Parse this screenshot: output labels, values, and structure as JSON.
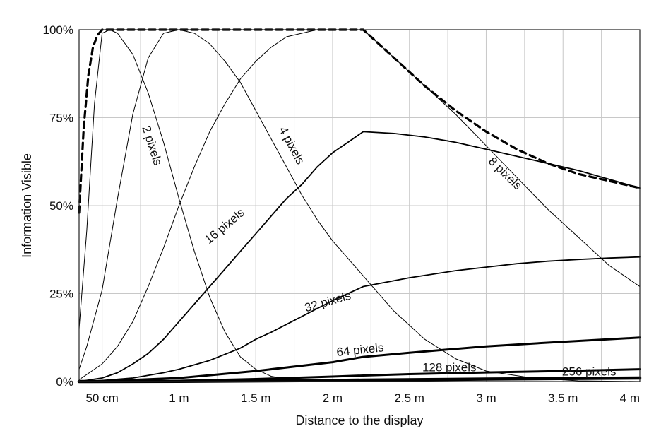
{
  "chart_data": {
    "type": "line",
    "title": "",
    "xlabel": "Distance to the display",
    "ylabel": "Information Visible",
    "xlim": [
      0.35,
      4.0
    ],
    "ylim": [
      0,
      100
    ],
    "x_ticks": [
      {
        "value": 0.5,
        "label": "50 cm"
      },
      {
        "value": 1.0,
        "label": "1 m"
      },
      {
        "value": 1.5,
        "label": "1.5 m"
      },
      {
        "value": 2.0,
        "label": "2 m"
      },
      {
        "value": 2.5,
        "label": "2.5 m"
      },
      {
        "value": 3.0,
        "label": "3 m"
      },
      {
        "value": 3.5,
        "label": "3.5 m"
      },
      {
        "value": 4.0,
        "label": "4 m"
      }
    ],
    "x_minor_grid": [
      0.75,
      1.25,
      1.75,
      2.25,
      2.75,
      3.25,
      3.75
    ],
    "y_ticks": [
      {
        "value": 0,
        "label": "0%"
      },
      {
        "value": 25,
        "label": "25%"
      },
      {
        "value": 50,
        "label": "50%"
      },
      {
        "value": 75,
        "label": "75%"
      },
      {
        "value": 100,
        "label": "100%"
      }
    ],
    "grid": true,
    "series": [
      {
        "name": "2 pixels",
        "style": "thin",
        "x": [
          0.35,
          0.4,
          0.45,
          0.5,
          0.55,
          0.6,
          0.7,
          0.8,
          0.9,
          1.0,
          1.1,
          1.2,
          1.3,
          1.4,
          1.5,
          1.6,
          1.7,
          1.8,
          1.9,
          2.0,
          2.2
        ],
        "y": [
          15,
          43,
          79,
          99,
          100,
          99,
          93,
          82,
          68,
          52,
          37,
          24,
          14,
          7,
          3.5,
          1.5,
          0.7,
          0.3,
          0.1,
          0,
          0
        ]
      },
      {
        "name": "4 pixels",
        "style": "thin",
        "x": [
          0.35,
          0.4,
          0.5,
          0.6,
          0.7,
          0.8,
          0.9,
          1.0,
          1.1,
          1.2,
          1.3,
          1.4,
          1.5,
          1.6,
          1.7,
          1.8,
          1.9,
          2.0,
          2.1,
          2.2,
          2.4,
          2.6,
          2.8,
          3.0,
          3.3,
          3.6,
          4.0
        ],
        "y": [
          3.5,
          10,
          26,
          52,
          76,
          92,
          99,
          100,
          99,
          96,
          91,
          85,
          77,
          69,
          61,
          53,
          46,
          40,
          35,
          30,
          20,
          12,
          6.5,
          3,
          1,
          0.2,
          0
        ]
      },
      {
        "name": "8 pixels",
        "style": "thin",
        "x": [
          0.35,
          0.5,
          0.6,
          0.7,
          0.8,
          0.9,
          1.0,
          1.1,
          1.2,
          1.3,
          1.4,
          1.5,
          1.6,
          1.7,
          1.8,
          1.9,
          2.0,
          2.1,
          2.2,
          2.4,
          2.6,
          2.8,
          3.0,
          3.2,
          3.4,
          3.6,
          3.8,
          4.0
        ],
        "y": [
          0.5,
          5,
          10,
          17,
          27,
          38,
          50,
          61,
          71,
          79,
          86,
          91,
          95,
          98,
          99,
          100,
          100,
          100,
          100,
          92,
          84,
          76,
          67,
          58,
          49,
          41,
          33,
          27
        ]
      },
      {
        "name": "16 pixels",
        "style": "medium",
        "x": [
          0.35,
          0.5,
          0.6,
          0.7,
          0.8,
          0.9,
          1.0,
          1.1,
          1.2,
          1.3,
          1.4,
          1.5,
          1.6,
          1.7,
          1.8,
          1.9,
          2.0,
          2.1,
          2.2,
          2.4,
          2.6,
          2.8,
          3.0,
          3.2,
          3.4,
          3.6,
          3.8,
          4.0
        ],
        "y": [
          0,
          1,
          2.5,
          5,
          8,
          12,
          17,
          22,
          27,
          32,
          37,
          42,
          47,
          52,
          56,
          61,
          65,
          68,
          71,
          70.5,
          69.5,
          68,
          66,
          64,
          62,
          60,
          57.5,
          55
        ]
      },
      {
        "name": "32 pixels",
        "style": "medium",
        "x": [
          0.35,
          0.5,
          0.7,
          0.9,
          1.0,
          1.2,
          1.4,
          1.5,
          1.6,
          1.8,
          2.0,
          2.2,
          2.5,
          2.8,
          3.0,
          3.2,
          3.4,
          3.6,
          3.8,
          4.0
        ],
        "y": [
          0,
          0.3,
          1,
          2.5,
          3.5,
          6,
          9.5,
          12,
          14,
          18.5,
          23,
          27,
          29.5,
          31.5,
          32.5,
          33.5,
          34.2,
          34.7,
          35.1,
          35.4
        ]
      },
      {
        "name": "64 pixels",
        "style": "thick",
        "x": [
          0.35,
          0.5,
          1.0,
          1.5,
          2.0,
          2.2,
          2.5,
          3.0,
          3.5,
          4.0
        ],
        "y": [
          0,
          0.1,
          1,
          3,
          5.5,
          7,
          8.2,
          10,
          11.3,
          12.5
        ]
      },
      {
        "name": "128 pixels",
        "style": "thick",
        "x": [
          0.35,
          1.0,
          1.5,
          2.0,
          2.2,
          2.5,
          3.0,
          3.5,
          4.0
        ],
        "y": [
          0,
          0.2,
          0.7,
          1.4,
          1.7,
          2.1,
          2.6,
          3.0,
          3.5
        ]
      },
      {
        "name": "256 pixels",
        "style": "xthick",
        "x": [
          0.35,
          1.0,
          2.0,
          2.2,
          3.0,
          4.0
        ],
        "y": [
          0,
          0.05,
          0.3,
          0.4,
          0.7,
          1.0
        ]
      },
      {
        "name": "",
        "style": "dashed",
        "x": [
          0.35,
          0.38,
          0.41,
          0.44,
          0.47,
          0.5,
          0.55,
          1.0,
          1.5,
          2.0,
          2.2,
          2.4,
          2.6,
          2.8,
          3.0,
          3.2,
          3.4,
          3.6,
          3.8,
          4.0
        ],
        "y": [
          48,
          72,
          87,
          95,
          98.5,
          100,
          100,
          100,
          100,
          100,
          100,
          92,
          84,
          77,
          71,
          66,
          62,
          59,
          57,
          55
        ]
      }
    ],
    "curve_labels": [
      {
        "series": "2 pixels",
        "text": "2 pixels",
        "x": 0.82,
        "y": 67,
        "angle": 72
      },
      {
        "series": "4 pixels",
        "text": "4 pixels",
        "x": 1.73,
        "y": 67,
        "angle": 62
      },
      {
        "series": "8 pixels",
        "text": "8 pixels",
        "x": 3.12,
        "y": 59,
        "angle": 44
      },
      {
        "series": "16 pixels",
        "text": "16 pixels",
        "x": 1.3,
        "y": 44,
        "angle": -40
      },
      {
        "series": "32 pixels",
        "text": "32 pixels",
        "x": 1.97,
        "y": 22.5,
        "angle": -16
      },
      {
        "series": "64 pixels",
        "text": "64 pixels",
        "x": 2.18,
        "y": 8.8,
        "angle": -6
      },
      {
        "series": "128 pixels",
        "text": "128 pixels",
        "x": 2.76,
        "y": 3.8,
        "angle": 0
      },
      {
        "series": "256 pixels",
        "text": "256 pixels",
        "x": 3.67,
        "y": 2.6,
        "angle": 0
      }
    ]
  }
}
